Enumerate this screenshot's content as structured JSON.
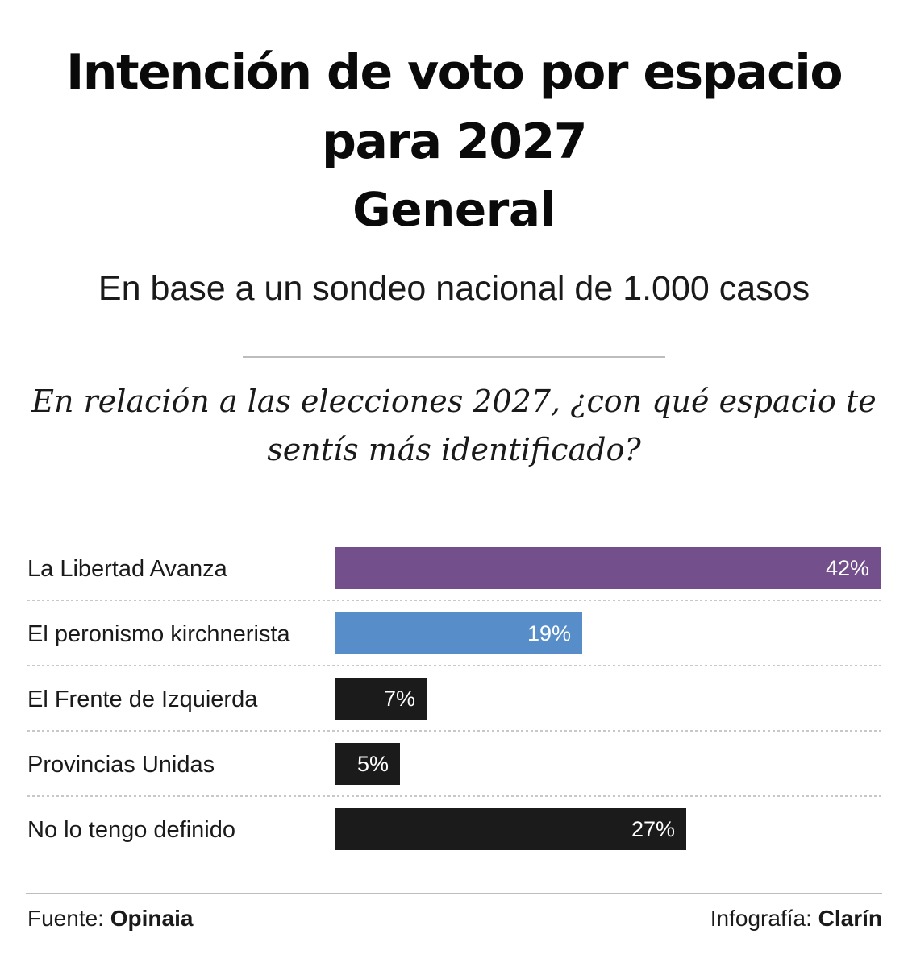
{
  "title": {
    "line1": "Intención de voto por espacio",
    "line2": "para 2027",
    "line3": "General"
  },
  "subtitle": "En base a un sondeo nacional de 1.000 casos",
  "question": "En relación a las elecciones 2027, ¿con qué espacio te sentís más identificado?",
  "footer": {
    "source_label": "Fuente: ",
    "source_name": "Opinaia",
    "credit_label": "Infografía: ",
    "credit_name": "Clarín"
  },
  "colors": {
    "purple": "#734f8c",
    "blue": "#578dc8",
    "dark": "#1b1b1b"
  },
  "chart_data": {
    "type": "bar",
    "orientation": "horizontal",
    "categories": [
      "La Libertad Avanza",
      "El peronismo kirchnerista",
      "El Frente de Izquierda",
      "Provincias Unidas",
      "No lo tengo definido"
    ],
    "values": [
      42,
      19,
      7,
      5,
      27
    ],
    "value_labels": [
      "42%",
      "19%",
      "7%",
      "5%",
      "27%"
    ],
    "bar_colors": [
      "#734f8c",
      "#578dc8",
      "#1b1b1b",
      "#1b1b1b",
      "#1b1b1b"
    ],
    "unit": "%",
    "xlim": [
      0,
      42
    ],
    "grid": false
  }
}
